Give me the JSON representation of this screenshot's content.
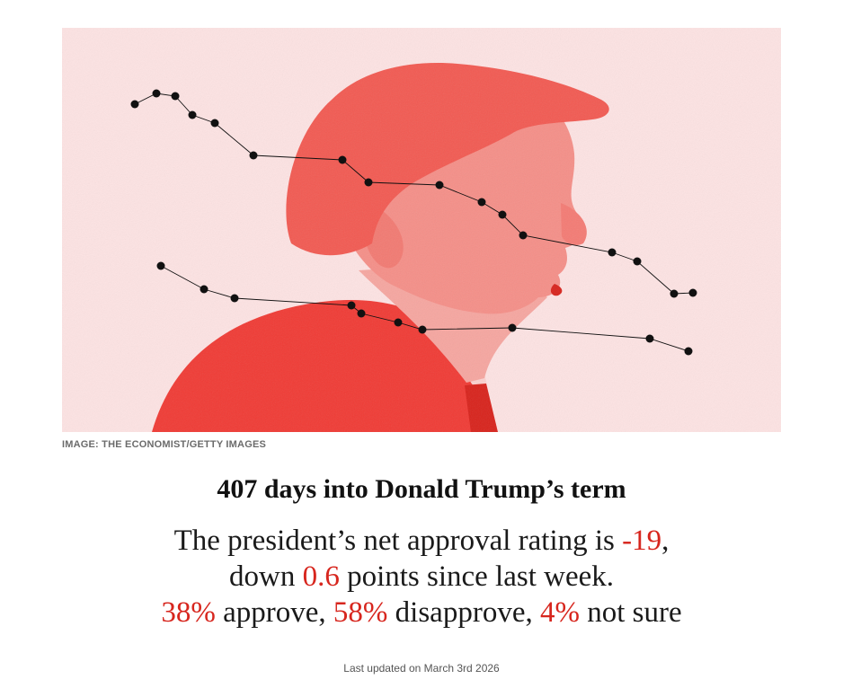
{
  "hero_image": {
    "credit": "IMAGE: THE ECONOMIST/GETTY IMAGES",
    "background_color": "#fde3e3",
    "portrait_color": "#f24a43",
    "line_color": "#111111"
  },
  "headline": "407 days into Donald Trump’s term",
  "summary": {
    "line1_prefix": "The president’s net approval rating is ",
    "net_approval": "-19",
    "line1_suffix": ",",
    "line2_prefix": "down ",
    "weekly_change": "0.6",
    "line2_suffix": " points since last week.",
    "approve": "38%",
    "approve_label": " approve, ",
    "disapprove": "58%",
    "disapprove_label": " disapprove, ",
    "not_sure": "4%",
    "not_sure_label": " not sure",
    "highlight_color": "#d7261e"
  },
  "last_updated": "Last updated on March 3rd 2026"
}
